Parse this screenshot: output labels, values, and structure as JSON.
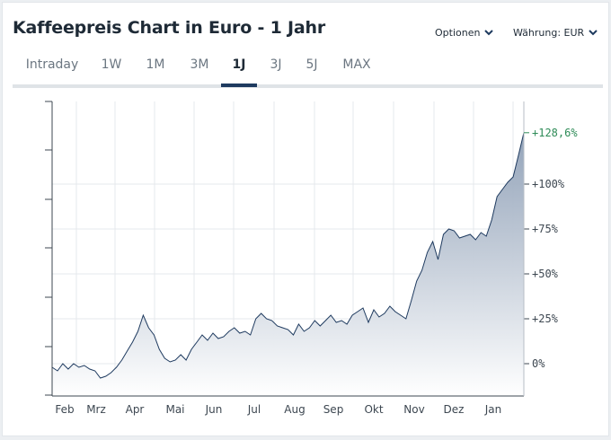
{
  "header": {
    "title": "Kaffeepreis Chart in Euro - 1 Jahr",
    "options_label": "Optionen",
    "currency_label": "Währung: EUR"
  },
  "tabs": [
    {
      "label": "Intraday",
      "active": false
    },
    {
      "label": "1W",
      "active": false
    },
    {
      "label": "1M",
      "active": false
    },
    {
      "label": "3M",
      "active": false
    },
    {
      "label": "1J",
      "active": true
    },
    {
      "label": "3J",
      "active": false
    },
    {
      "label": "5J",
      "active": false
    },
    {
      "label": "MAX",
      "active": false
    }
  ],
  "colors": {
    "line": "#1e3a5f",
    "area_top": "#8e9fb6",
    "area_bottom": "#ffffff",
    "current_value_label": "#2e8b57",
    "axis_text": "#3d4751",
    "grid": "#e6e9ec"
  },
  "chart_data": {
    "type": "area",
    "title": "Kaffeepreis Chart in Euro - 1 Jahr",
    "xlabel": "",
    "ylabel": "",
    "unit": "%",
    "x_tick_labels": [
      "Feb",
      "Mrz",
      "Apr",
      "Mai",
      "Jun",
      "Jul",
      "Aug",
      "Sep",
      "Okt",
      "Nov",
      "Dez",
      "Jan"
    ],
    "y_tick_labels": [
      "0%",
      "+25%",
      "+50%",
      "+75%",
      "+100%"
    ],
    "y_ticks": [
      0,
      25,
      50,
      75,
      100
    ],
    "current_value": 128.6,
    "current_value_label": "+128,6%",
    "ylim": [
      -18,
      146
    ],
    "grid": true,
    "y_axis_position": "right",
    "x": [
      "Feb",
      "Feb",
      "Feb",
      "Feb",
      "Feb",
      "Feb",
      "Feb",
      "Feb",
      "Mrz",
      "Mrz",
      "Mrz",
      "Mrz",
      "Mrz",
      "Mrz",
      "Mrz",
      "Mrz",
      "Apr",
      "Apr",
      "Apr",
      "Apr",
      "Apr",
      "Apr",
      "Apr",
      "Apr",
      "Mai",
      "Mai",
      "Mai",
      "Mai",
      "Mai",
      "Mai",
      "Mai",
      "Mai",
      "Jun",
      "Jun",
      "Jun",
      "Jun",
      "Jun",
      "Jun",
      "Jun",
      "Jul",
      "Jul",
      "Jul",
      "Jul",
      "Jul",
      "Jul",
      "Jul",
      "Aug",
      "Aug",
      "Aug",
      "Aug",
      "Aug",
      "Aug",
      "Aug",
      "Sep",
      "Sep",
      "Sep",
      "Sep",
      "Sep",
      "Sep",
      "Sep",
      "Okt",
      "Okt",
      "Okt",
      "Okt",
      "Okt",
      "Okt",
      "Okt",
      "Okt",
      "Nov",
      "Nov",
      "Nov",
      "Nov",
      "Nov",
      "Nov",
      "Nov",
      "Dez",
      "Dez",
      "Dez",
      "Dez",
      "Dez",
      "Dez",
      "Dez",
      "Jan",
      "Jan",
      "Jan",
      "Jan",
      "Jan",
      "Jan",
      "Jan"
    ],
    "values": [
      -2,
      -4,
      0,
      -3,
      0,
      -2,
      -1,
      -3,
      -4,
      -8,
      -7,
      -5,
      -2,
      2,
      7,
      12,
      18,
      27,
      20,
      16,
      8,
      3,
      1,
      2,
      5,
      2,
      8,
      12,
      16,
      13,
      17,
      14,
      15,
      18,
      20,
      17,
      18,
      16,
      25,
      28,
      25,
      24,
      21,
      20,
      19,
      16,
      22,
      18,
      20,
      24,
      21,
      24,
      27,
      23,
      24,
      22,
      27,
      29,
      31,
      23,
      30,
      26,
      28,
      32,
      29,
      27,
      25,
      35,
      46,
      52,
      62,
      68,
      58,
      72,
      75,
      74,
      70,
      71,
      72,
      69,
      73,
      71,
      80,
      93,
      97,
      101,
      104,
      116,
      128.6
    ]
  }
}
